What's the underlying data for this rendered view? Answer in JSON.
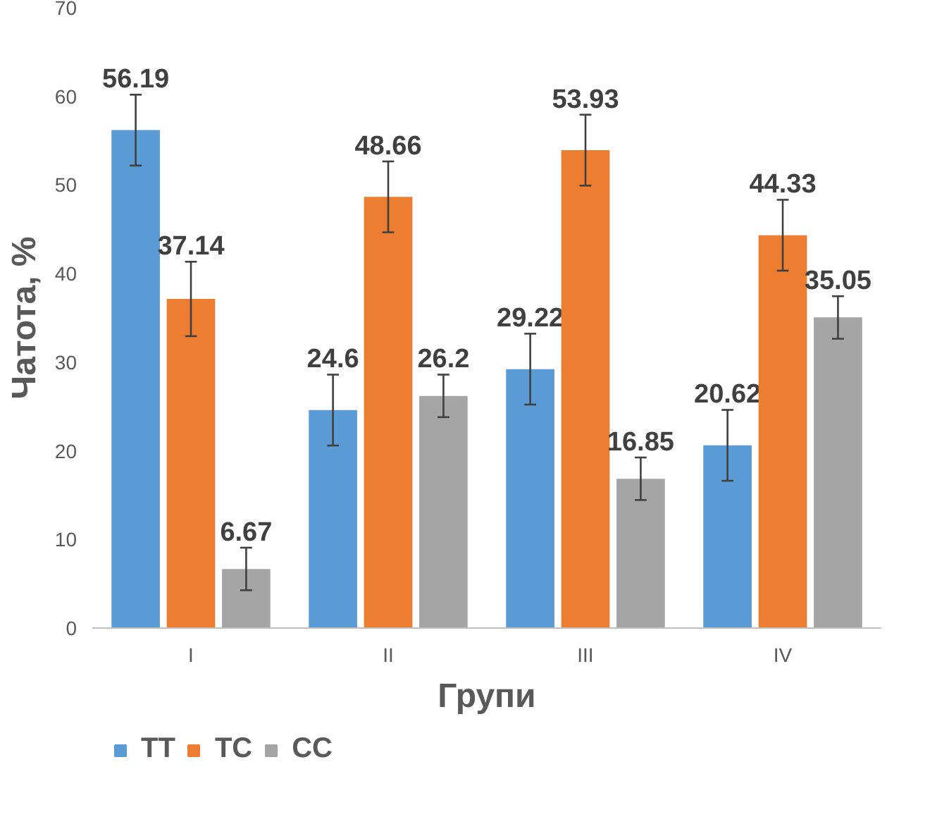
{
  "chart_data": {
    "type": "bar",
    "xlabel": "Групи",
    "ylabel": "Чатота, %",
    "categories": [
      "I",
      "II",
      "III",
      "IV"
    ],
    "series": [
      {
        "name": "TT",
        "color": "#5b9bd5",
        "values": [
          56.19,
          24.6,
          29.22,
          20.62
        ],
        "errors": [
          4,
          4,
          4,
          4
        ]
      },
      {
        "name": "TC",
        "color": "#ed7d31",
        "values": [
          37.14,
          48.66,
          53.93,
          44.33
        ],
        "errors": [
          4.2,
          4,
          4,
          4
        ]
      },
      {
        "name": "CC",
        "color": "#a5a5a5",
        "values": [
          6.67,
          26.2,
          16.85,
          35.05
        ],
        "errors": [
          2.4,
          2.4,
          2.4,
          2.4
        ]
      }
    ],
    "ylim": [
      0,
      70
    ],
    "yticks": [
      0,
      10,
      20,
      30,
      40,
      50,
      60,
      70
    ],
    "grid": false,
    "legend": "bottom left",
    "data_labels": true
  }
}
